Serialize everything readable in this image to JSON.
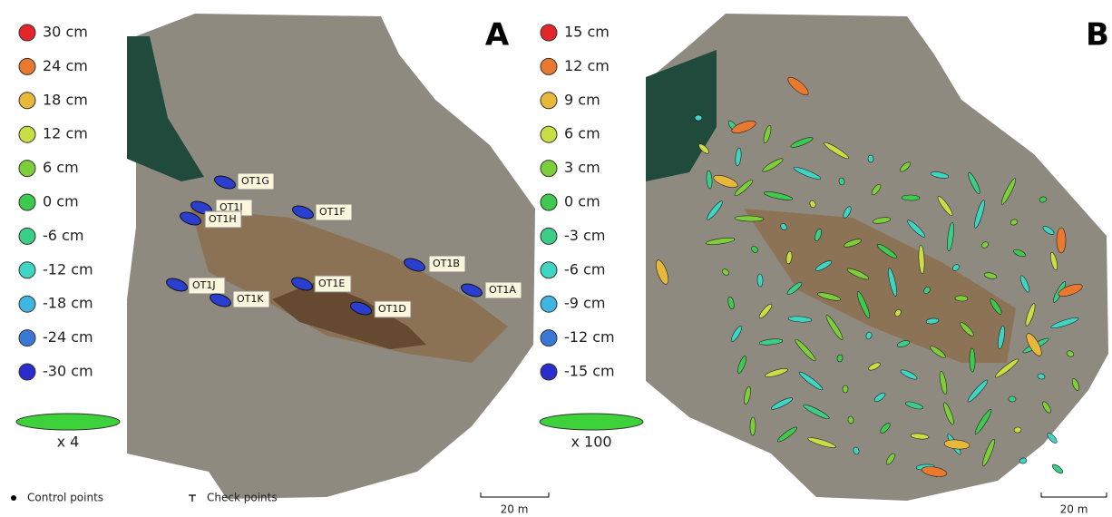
{
  "panel_a": {
    "letter": "A",
    "legend": [
      {
        "label": "30 cm",
        "color": "#e3262a"
      },
      {
        "label": "24 cm",
        "color": "#e8792f"
      },
      {
        "label": "18 cm",
        "color": "#e8b83a"
      },
      {
        "label": "12 cm",
        "color": "#c8de44"
      },
      {
        "label": "6 cm",
        "color": "#7ccf3a"
      },
      {
        "label": "0 cm",
        "color": "#3ec94f"
      },
      {
        "label": "-6 cm",
        "color": "#3ccd86"
      },
      {
        "label": "-12 cm",
        "color": "#3ed6c2"
      },
      {
        "label": "-18 cm",
        "color": "#3fb6e0"
      },
      {
        "label": "-24 cm",
        "color": "#3a78d6"
      },
      {
        "label": "-30 cm",
        "color": "#2a2ccc"
      }
    ],
    "scale_factor": "x 4",
    "points": [
      "OT1G",
      "OT1I",
      "OT1H",
      "OT1F",
      "OT1B",
      "OT1A",
      "OT1J",
      "OT1E",
      "OT1K",
      "OT1D"
    ],
    "scale_bar": "20 m"
  },
  "panel_b": {
    "letter": "B",
    "legend": [
      {
        "label": "15 cm",
        "color": "#e3262a"
      },
      {
        "label": "12 cm",
        "color": "#e8792f"
      },
      {
        "label": "9 cm",
        "color": "#e8b83a"
      },
      {
        "label": "6 cm",
        "color": "#c8de44"
      },
      {
        "label": "3 cm",
        "color": "#7ccf3a"
      },
      {
        "label": "0 cm",
        "color": "#3ec94f"
      },
      {
        "label": "-3 cm",
        "color": "#3ccd86"
      },
      {
        "label": "-6 cm",
        "color": "#3ed6c2"
      },
      {
        "label": "-9 cm",
        "color": "#3fb6e0"
      },
      {
        "label": "-12 cm",
        "color": "#3a78d6"
      },
      {
        "label": "-15 cm",
        "color": "#2a2ccc"
      }
    ],
    "scale_factor": "x 100",
    "scale_bar": "20 m"
  },
  "footer": {
    "control_points": "Control points",
    "check_points": "Check points"
  }
}
